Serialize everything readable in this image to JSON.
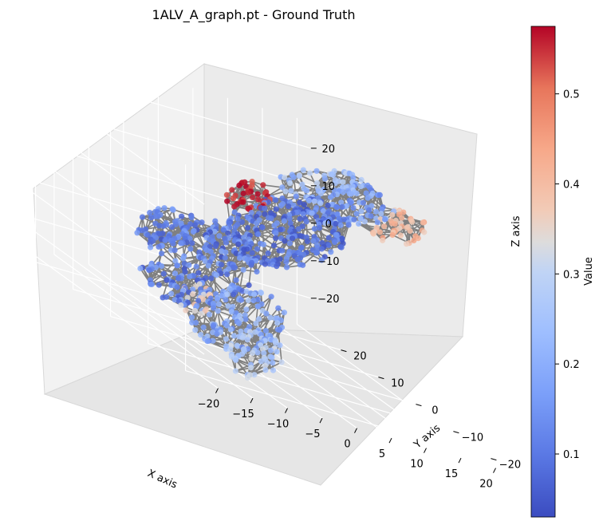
{
  "chart_data": {
    "type": "scatter",
    "subtype": "3d-graph",
    "title": "1ALV_A_graph.pt - Ground Truth",
    "xlabel": "X axis",
    "ylabel": "Y axis",
    "zlabel": "Z axis",
    "xticks": [
      "−20",
      "−15",
      "−10",
      "−5",
      "0",
      "5",
      "10",
      "15",
      "20"
    ],
    "yticks": [
      "−20",
      "−10",
      "0",
      "10",
      "20"
    ],
    "zticks": [
      "−20",
      "−10",
      "0",
      "10",
      "20"
    ],
    "xlim": [
      -22,
      22
    ],
    "ylim": [
      -25,
      28
    ],
    "zlim": [
      -28,
      27
    ],
    "colorbar": {
      "label": "Value",
      "min": 0.03,
      "max": 0.575,
      "ticks": [
        "0.1",
        "0.2",
        "0.3",
        "0.4",
        "0.5"
      ],
      "tick_values": [
        0.1,
        0.2,
        0.3,
        0.4,
        0.5
      ],
      "colormap": "coolwarm"
    },
    "edge_color": "#808080",
    "grid": true,
    "note_series": "Protein residue graph: nodes colored by value; dense gray edges between nearby nodes"
  }
}
